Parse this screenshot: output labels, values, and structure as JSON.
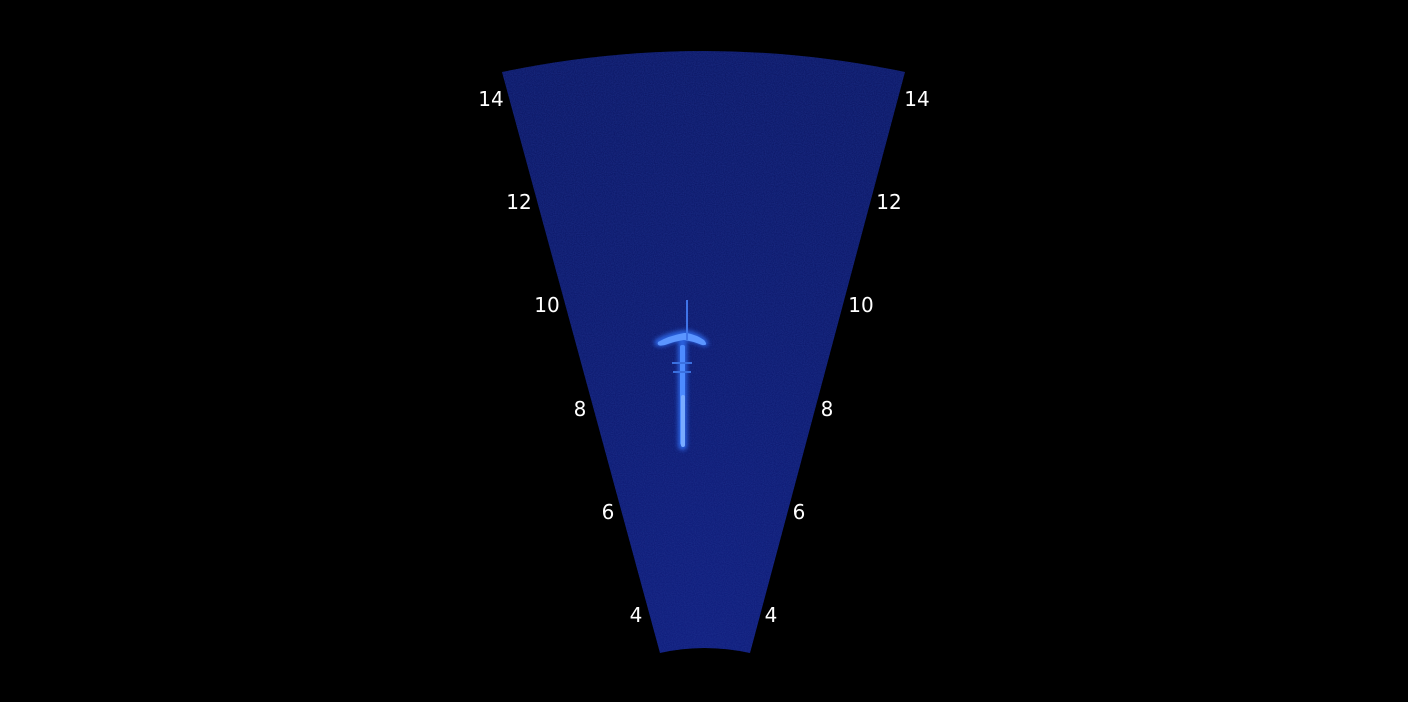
{
  "sonar": {
    "range_min": 3.5,
    "range_max": 15,
    "fan_color": "#0a1466",
    "target_color": "#3a7dff",
    "background": "#000000",
    "label_color": "#ffffff",
    "range_labels": {
      "left": [
        "4",
        "6",
        "8",
        "10",
        "12",
        "14"
      ],
      "right": [
        "4",
        "6",
        "8",
        "10",
        "12",
        "14"
      ]
    }
  }
}
